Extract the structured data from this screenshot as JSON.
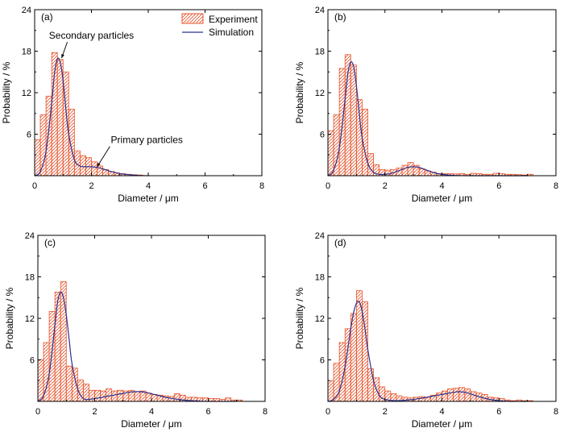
{
  "colors": {
    "bar": "#e8532b",
    "curve": "#2a3190",
    "axis": "#000000"
  },
  "legend": {
    "experiment": "Experiment",
    "simulation": "Simulation",
    "placement": "top-right of panel a"
  },
  "chart_data": [
    {
      "type": "bar",
      "panel": "(a)",
      "xlabel": "Diameter / μm",
      "ylabel": "Probability / %",
      "xlim": [
        0,
        8
      ],
      "ylim": [
        0,
        24
      ],
      "xticks": [
        "0",
        "2",
        "4",
        "6",
        "8"
      ],
      "yticks": [
        "6",
        "12",
        "18",
        "24"
      ],
      "bin_width": 0.2,
      "series": [
        {
          "name": "Experiment",
          "x": [
            0.1,
            0.3,
            0.5,
            0.7,
            0.9,
            1.1,
            1.3,
            1.5,
            1.7,
            1.9,
            2.1,
            2.3,
            2.5,
            2.7,
            2.9,
            3.1,
            3.3,
            3.5,
            3.7
          ],
          "values": [
            5.2,
            8.8,
            11.5,
            17.8,
            16.8,
            15.0,
            9.6,
            3.6,
            2.9,
            2.6,
            2.0,
            1.4,
            0.9,
            0.6,
            0.4,
            0.3,
            0.2,
            0.15,
            0.1
          ]
        },
        {
          "name": "Simulation",
          "x": [
            0,
            0.2,
            0.4,
            0.6,
            0.7,
            0.8,
            0.9,
            1.0,
            1.1,
            1.2,
            1.4,
            1.6,
            1.8,
            2.0,
            2.2,
            2.4,
            2.6,
            2.8,
            3.0,
            3.2,
            3.6,
            4.0
          ],
          "values": [
            0,
            0.6,
            3.5,
            10.5,
            14.8,
            16.9,
            16.4,
            13.8,
            9.6,
            6.0,
            2.3,
            1.4,
            1.3,
            1.3,
            1.2,
            1.0,
            0.7,
            0.5,
            0.3,
            0.2,
            0.05,
            0
          ]
        }
      ],
      "annotations": [
        {
          "text": "Secondary particles",
          "x": 2.0,
          "y": 19.8,
          "arrow_to": [
            0.95,
            17.0
          ]
        },
        {
          "text": "Primary particles",
          "x": 3.95,
          "y": 4.7,
          "arrow_to": [
            2.2,
            1.3
          ]
        }
      ]
    },
    {
      "type": "bar",
      "panel": "(b)",
      "xlabel": "Diameter / μm",
      "ylabel": "Probability / %",
      "xlim": [
        0,
        8
      ],
      "ylim": [
        0,
        24
      ],
      "xticks": [
        "0",
        "2",
        "4",
        "6",
        "8"
      ],
      "yticks": [
        "6",
        "12",
        "18",
        "24"
      ],
      "bin_width": 0.2,
      "series": [
        {
          "name": "Experiment",
          "x": [
            0.1,
            0.3,
            0.5,
            0.7,
            0.9,
            1.1,
            1.3,
            1.5,
            1.7,
            1.9,
            2.1,
            2.3,
            2.5,
            2.7,
            2.9,
            3.1,
            3.3,
            3.5,
            3.7,
            3.9,
            4.1,
            4.3,
            4.5,
            4.7,
            4.9,
            5.1,
            5.3,
            5.5,
            5.7,
            5.9,
            6.1,
            6.3,
            6.5,
            6.7,
            6.9,
            7.1
          ],
          "values": [
            6.5,
            8.8,
            15.5,
            17.5,
            16.0,
            11.0,
            9.6,
            3.2,
            1.6,
            0.9,
            0.8,
            0.9,
            1.1,
            1.5,
            1.9,
            1.5,
            1.0,
            0.7,
            0.5,
            0.3,
            0.3,
            0.3,
            0.25,
            0.3,
            0.2,
            0.35,
            0.3,
            0.2,
            0.2,
            0.35,
            0.3,
            0.2,
            0.2,
            0.15,
            0.1,
            0.2
          ]
        },
        {
          "name": "Simulation",
          "x": [
            0,
            0.2,
            0.4,
            0.6,
            0.7,
            0.8,
            0.9,
            1.0,
            1.1,
            1.2,
            1.4,
            1.6,
            1.8,
            2.0,
            2.2,
            2.4,
            2.6,
            2.8,
            3.0,
            3.2,
            3.4,
            3.6,
            3.8,
            4.0,
            4.4,
            5.0,
            6.0,
            7.0
          ],
          "values": [
            0,
            0.8,
            4.0,
            11.0,
            14.8,
            16.4,
            15.8,
            13.0,
            9.0,
            5.5,
            1.8,
            0.5,
            0.2,
            0.2,
            0.3,
            0.6,
            0.9,
            1.2,
            1.3,
            1.2,
            0.9,
            0.6,
            0.35,
            0.2,
            0.05,
            0,
            0,
            0
          ]
        }
      ]
    },
    {
      "type": "bar",
      "panel": "(c)",
      "xlabel": "Diameter / μm",
      "ylabel": "Probability / %",
      "xlim": [
        0,
        8
      ],
      "ylim": [
        0,
        24
      ],
      "xticks": [
        "0",
        "2",
        "4",
        "6",
        "8"
      ],
      "yticks": [
        "6",
        "12",
        "18",
        "24"
      ],
      "bin_width": 0.2,
      "series": [
        {
          "name": "Experiment",
          "x": [
            0.1,
            0.3,
            0.5,
            0.7,
            0.9,
            1.1,
            1.3,
            1.5,
            1.7,
            1.9,
            2.1,
            2.3,
            2.5,
            2.7,
            2.9,
            3.1,
            3.3,
            3.5,
            3.7,
            3.9,
            4.1,
            4.3,
            4.5,
            4.7,
            4.9,
            5.1,
            5.3,
            5.5,
            5.7,
            5.9,
            6.1,
            6.3,
            6.5,
            6.7,
            6.9,
            7.1
          ],
          "values": [
            6.0,
            8.5,
            13.0,
            15.8,
            17.3,
            5.1,
            4.8,
            3.1,
            2.5,
            1.6,
            1.6,
            1.5,
            1.8,
            1.5,
            1.6,
            1.5,
            1.6,
            1.4,
            1.5,
            1.2,
            1.0,
            0.9,
            0.8,
            0.7,
            1.1,
            0.9,
            0.6,
            0.6,
            0.5,
            0.5,
            0.4,
            0.4,
            0.3,
            0.5,
            0.2,
            0.2
          ]
        },
        {
          "name": "Simulation",
          "x": [
            0,
            0.2,
            0.4,
            0.6,
            0.7,
            0.8,
            0.9,
            1.0,
            1.1,
            1.2,
            1.4,
            1.6,
            1.8,
            2.0,
            2.4,
            2.8,
            3.2,
            3.4,
            3.6,
            3.8,
            4.0,
            4.2,
            4.6,
            5.0,
            5.4,
            6.0,
            7.0
          ],
          "values": [
            0,
            0.8,
            4.0,
            11.0,
            14.5,
            15.8,
            15.0,
            12.5,
            9.0,
            5.5,
            1.8,
            0.4,
            0.3,
            0.4,
            0.7,
            1.0,
            1.3,
            1.4,
            1.4,
            1.3,
            1.1,
            0.9,
            0.5,
            0.25,
            0.1,
            0,
            0
          ]
        }
      ]
    },
    {
      "type": "bar",
      "panel": "(d)",
      "xlabel": "Diameter / μm",
      "ylabel": "Probability / %",
      "xlim": [
        0,
        8
      ],
      "ylim": [
        0,
        24
      ],
      "xticks": [
        "0",
        "2",
        "4",
        "6",
        "8"
      ],
      "yticks": [
        "6",
        "12",
        "18",
        "24"
      ],
      "bin_width": 0.2,
      "series": [
        {
          "name": "Experiment",
          "x": [
            0.1,
            0.3,
            0.5,
            0.7,
            0.9,
            1.1,
            1.3,
            1.5,
            1.7,
            1.9,
            2.1,
            2.3,
            2.5,
            2.7,
            2.9,
            3.1,
            3.3,
            3.5,
            3.7,
            3.9,
            4.1,
            4.3,
            4.5,
            4.7,
            4.9,
            5.1,
            5.3,
            5.5,
            5.7,
            5.9,
            6.1,
            6.3,
            6.5,
            6.7,
            6.9,
            7.1
          ],
          "values": [
            3.0,
            5.5,
            8.5,
            10.5,
            12.7,
            16.0,
            14.4,
            4.7,
            3.4,
            2.1,
            1.5,
            1.1,
            0.8,
            0.6,
            0.5,
            0.6,
            0.7,
            0.6,
            0.9,
            1.2,
            1.5,
            1.8,
            1.9,
            2.0,
            1.8,
            1.4,
            1.2,
            1.0,
            0.6,
            0.5,
            0.4,
            0.2,
            0.1,
            0.2,
            0.1,
            0.1
          ]
        },
        {
          "name": "Simulation",
          "x": [
            0,
            0.2,
            0.4,
            0.6,
            0.8,
            0.9,
            1.0,
            1.1,
            1.2,
            1.3,
            1.4,
            1.6,
            1.8,
            2.0,
            2.4,
            2.8,
            3.2,
            3.6,
            4.0,
            4.4,
            4.6,
            4.8,
            5.0,
            5.2,
            5.6,
            6.0,
            6.4,
            7.0
          ],
          "values": [
            0,
            0.3,
            1.5,
            5.0,
            10.5,
            12.8,
            14.2,
            14.4,
            13.0,
            10.5,
            7.5,
            3.0,
            0.9,
            0.3,
            0.1,
            0.2,
            0.4,
            0.7,
            1.0,
            1.3,
            1.4,
            1.3,
            1.1,
            0.8,
            0.35,
            0.1,
            0,
            0
          ]
        }
      ]
    }
  ]
}
